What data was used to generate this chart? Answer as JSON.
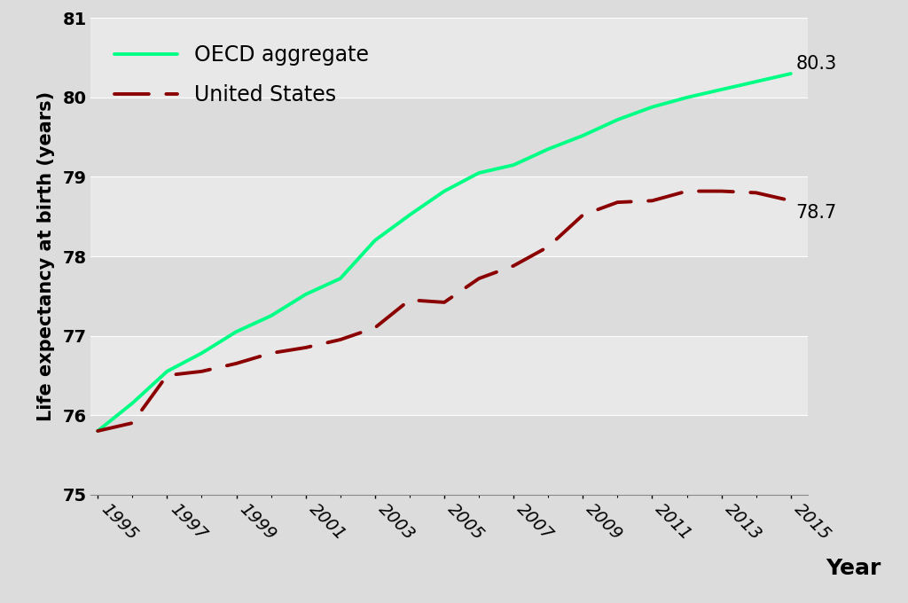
{
  "oecd_years": [
    1995,
    1996,
    1997,
    1998,
    1999,
    2000,
    2001,
    2002,
    2003,
    2004,
    2005,
    2006,
    2007,
    2008,
    2009,
    2010,
    2011,
    2012,
    2013,
    2014,
    2015
  ],
  "oecd_values": [
    75.8,
    76.15,
    76.55,
    76.78,
    77.05,
    77.25,
    77.52,
    77.72,
    78.2,
    78.52,
    78.82,
    79.05,
    79.15,
    79.35,
    79.52,
    79.72,
    79.88,
    80.0,
    80.1,
    80.2,
    80.3
  ],
  "us_years": [
    1995,
    1996,
    1997,
    1998,
    1999,
    2000,
    2001,
    2002,
    2003,
    2004,
    2005,
    2006,
    2007,
    2008,
    2009,
    2010,
    2011,
    2012,
    2013,
    2014,
    2015
  ],
  "us_values": [
    75.8,
    75.9,
    76.5,
    76.55,
    76.65,
    76.78,
    76.85,
    76.95,
    77.1,
    77.45,
    77.42,
    77.72,
    77.88,
    78.12,
    78.52,
    78.68,
    78.7,
    78.82,
    78.82,
    78.8,
    78.7
  ],
  "oecd_color": "#00FF85",
  "us_color": "#8B0000",
  "figure_bg": "#DCDCDC",
  "plot_bg": "#E8E8E8",
  "band_color_light": "#E8E8E8",
  "band_color_dark": "#DCDCDC",
  "ylabel": "Life expectancy at birth (years)",
  "xlabel": "Year",
  "ylim": [
    75.0,
    81.0
  ],
  "xlim_left": 1994.8,
  "xlim_right": 2015.5,
  "yticks": [
    75,
    76,
    77,
    78,
    79,
    80,
    81
  ],
  "xticks": [
    1995,
    1997,
    1999,
    2001,
    2003,
    2005,
    2007,
    2009,
    2011,
    2013,
    2015
  ],
  "oecd_label": "OECD aggregate",
  "us_label": "United States",
  "oecd_end_label": "80.3",
  "us_end_label": "78.7",
  "legend_fontsize": 17,
  "axis_ylabel_fontsize": 15,
  "axis_xlabel_fontsize": 18,
  "tick_fontsize": 14,
  "annotation_fontsize": 15
}
